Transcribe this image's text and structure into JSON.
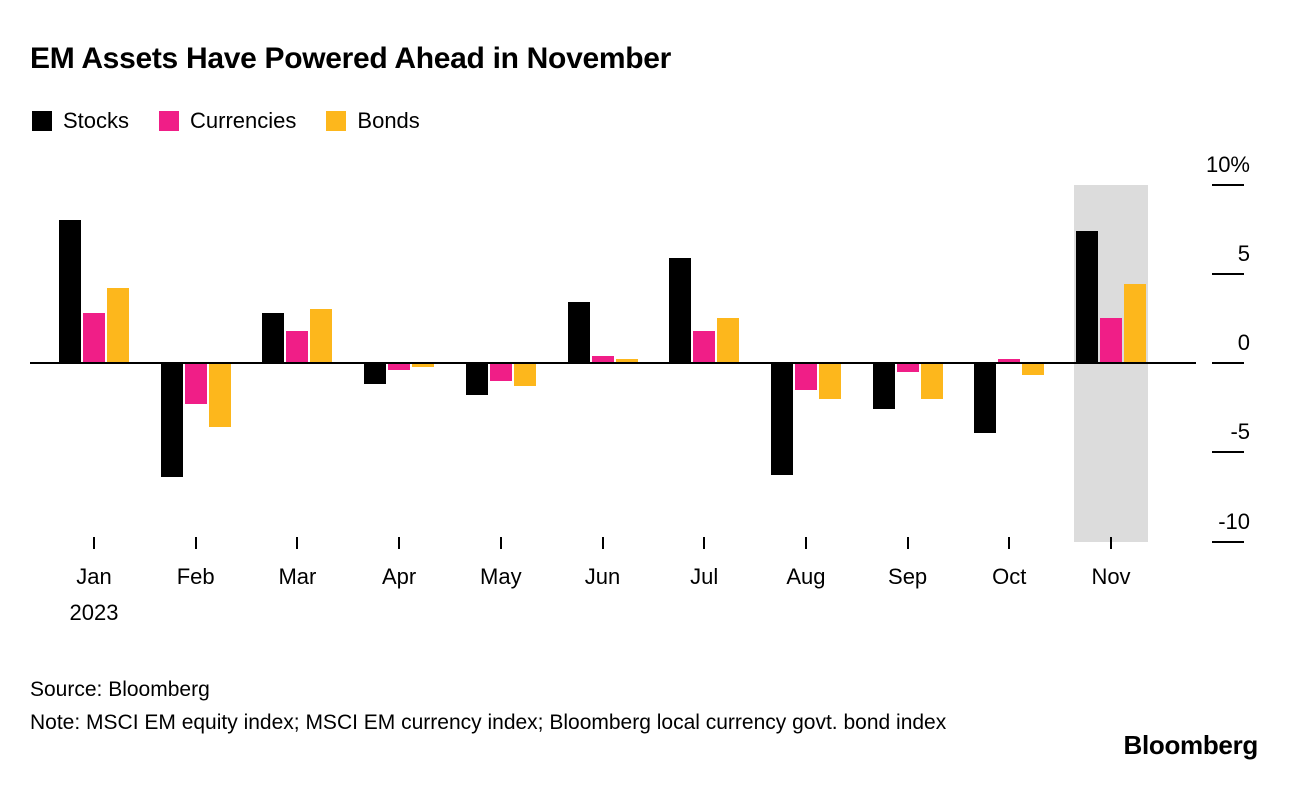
{
  "title": "EM Assets Have Powered Ahead in November",
  "legend": [
    {
      "label": "Stocks",
      "color": "#000000"
    },
    {
      "label": "Currencies",
      "color": "#f01e87"
    },
    {
      "label": "Bonds",
      "color": "#fdb71c"
    }
  ],
  "chart_data": {
    "type": "bar",
    "categories": [
      "Jan",
      "Feb",
      "Mar",
      "Apr",
      "May",
      "Jun",
      "Jul",
      "Aug",
      "Sep",
      "Oct",
      "Nov"
    ],
    "x_first_sub_label": "2023",
    "series": [
      {
        "name": "Stocks",
        "color": "#000000",
        "values": [
          8.0,
          -6.4,
          2.8,
          -1.2,
          -1.8,
          3.4,
          5.9,
          -6.3,
          -2.6,
          -3.9,
          7.4
        ]
      },
      {
        "name": "Currencies",
        "color": "#f01e87",
        "values": [
          2.8,
          -2.3,
          1.8,
          -0.4,
          -1.0,
          0.4,
          1.8,
          -1.5,
          -0.5,
          0.2,
          2.5
        ]
      },
      {
        "name": "Bonds",
        "color": "#fdb71c",
        "values": [
          4.2,
          -3.6,
          3.0,
          -0.2,
          -1.3,
          0.2,
          2.5,
          -2.0,
          -2.0,
          -0.7,
          4.4
        ]
      }
    ],
    "xlabel": "",
    "ylabel": "",
    "ylim": [
      -10,
      10
    ],
    "y_ticks": [
      10,
      5,
      0,
      -5,
      -10
    ],
    "y_tick_labels": [
      "10%",
      "5",
      "0",
      "-5",
      "-10"
    ],
    "grid": false,
    "legend_position": "top-left",
    "y_axis_side": "right",
    "highlight": {
      "category": "Nov",
      "color": "#dcdcdc"
    }
  },
  "footer": {
    "source": "Source: Bloomberg",
    "note": "Note: MSCI EM equity index; MSCI EM currency index; Bloomberg local currency govt. bond index",
    "logo": "Bloomberg"
  }
}
